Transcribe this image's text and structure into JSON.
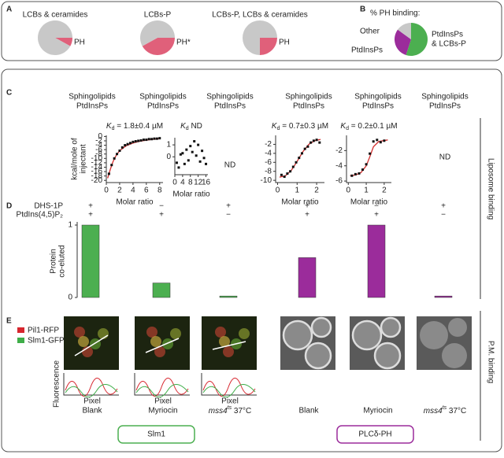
{
  "panel_labels": [
    "A",
    "B",
    "C",
    "D",
    "E"
  ],
  "chart_data": [
    {
      "type": "pie",
      "title": "LCBs & ceramides",
      "labels": [
        "PH",
        null
      ],
      "values": [
        8,
        92
      ],
      "colors": [
        "#e0607a",
        "#c8c8c8"
      ]
    },
    {
      "type": "pie",
      "title": "LCBs-P",
      "labels": [
        "PH*",
        null
      ],
      "values": [
        42,
        58
      ],
      "colors": [
        "#e0607a",
        "#c8c8c8"
      ]
    },
    {
      "type": "pie",
      "title": "LCBs-P, LCBs & ceramides",
      "labels": [
        "PH",
        null
      ],
      "values": [
        25,
        75
      ],
      "colors": [
        "#e0607a",
        "#c8c8c8"
      ]
    },
    {
      "type": "pie",
      "title": "% PH binding:",
      "labels": [
        [
          "PtdInsPs",
          "& LCBs-P"
        ],
        [
          "PtdInsPs"
        ],
        [
          "Other"
        ]
      ],
      "values": [
        55,
        30,
        15
      ],
      "colors": [
        "#4caf50",
        "#9b2c9b",
        "#c8c8c8"
      ]
    },
    {
      "type": "scatter",
      "kd": {
        "symbol": "K",
        "sub": "d",
        "text": " = 1.8±0.4 µM"
      },
      "xlabel": "Molar ratio",
      "ylabel": [
        "kcal/mole of",
        "injectant"
      ],
      "x": [
        0.4,
        0.8,
        1.2,
        1.6,
        2.0,
        2.4,
        2.8,
        3.2,
        3.6,
        4.0,
        4.4,
        4.8,
        5.2,
        5.6,
        6.0,
        6.4,
        6.8,
        7.2,
        7.6,
        8.0
      ],
      "values": [
        -17,
        -13,
        -10,
        -8,
        -6.5,
        -5,
        -4,
        -3.5,
        -3,
        -2.5,
        -2.2,
        -2,
        -1.8,
        -1.5,
        -1.5,
        -1.2,
        -1.2,
        -1,
        -1,
        -0.8
      ],
      "fit": {
        "color": "#d32f2f",
        "x": [
          0.2,
          0.6,
          1,
          1.5,
          2,
          3,
          4,
          5,
          6,
          7,
          8
        ],
        "values": [
          -19,
          -15,
          -11.5,
          -8.5,
          -6.5,
          -4.2,
          -3,
          -2.2,
          -1.7,
          -1.3,
          -1
        ]
      },
      "xlim": [
        0,
        8.5
      ],
      "ylim": [
        -21,
        0.5
      ],
      "xticks": [
        0,
        2,
        4,
        6,
        8
      ],
      "yticks": [
        0,
        -2,
        -4,
        -6,
        -8,
        -10,
        -12,
        -14,
        -16,
        -18,
        -20
      ]
    },
    {
      "type": "scatter",
      "kd": {
        "symbol": "K",
        "sub": "d",
        "text": " ND"
      },
      "xlabel": "Molar ratio",
      "x": [
        1,
        2,
        3,
        4,
        5,
        6,
        7,
        8,
        9,
        10,
        11,
        12,
        13,
        14,
        15,
        16
      ],
      "values": [
        -0.5,
        -0.9,
        0.2,
        0.3,
        -0.6,
        0.6,
        -0.3,
        0.9,
        0.4,
        1.3,
        0.1,
        1.0,
        -0.4,
        0.5,
        -0.1,
        -0.6
      ],
      "xlim": [
        0,
        17
      ],
      "ylim": [
        -1.5,
        1.6
      ],
      "xticks": [
        0,
        4,
        8,
        12,
        16
      ],
      "yticks": [
        1,
        0
      ]
    },
    {
      "type": "scatter",
      "kd": {
        "symbol": "K",
        "sub": "d",
        "text": " = 0.7±0.3 µM"
      },
      "xlabel": "Molar ratio",
      "x": [
        0.2,
        0.35,
        0.5,
        0.65,
        0.8,
        0.95,
        1.1,
        1.25,
        1.4,
        1.55,
        1.7,
        1.85,
        2.0,
        2.15
      ],
      "values": [
        -8.8,
        -9.2,
        -8.5,
        -8,
        -7,
        -6,
        -5,
        -4,
        -3,
        -2.5,
        -1.6,
        -1.2,
        -1,
        -1.6
      ],
      "fit": {
        "color": "#d32f2f",
        "x": [
          0.1,
          0.4,
          0.7,
          1.0,
          1.3,
          1.6,
          1.9,
          2.2
        ],
        "values": [
          -9.3,
          -9,
          -7.8,
          -5.8,
          -3.6,
          -2,
          -1.2,
          -0.9
        ]
      },
      "xlim": [
        -0.1,
        2.4
      ],
      "ylim": [
        -10.5,
        0
      ],
      "xticks": [
        0,
        1,
        2
      ],
      "yticks": [
        -2,
        -4,
        -6,
        -8,
        -10
      ]
    },
    {
      "type": "scatter",
      "kd": {
        "symbol": "K",
        "sub": "d",
        "text": " = 0.2±0.1 µM"
      },
      "xlabel": "Molar ratio",
      "x": [
        0.2,
        0.4,
        0.6,
        0.8,
        1.0,
        1.2,
        1.4,
        1.6,
        1.8,
        2.0
      ],
      "values": [
        -5.3,
        -5.1,
        -5.0,
        -4.5,
        -3.8,
        -2.4,
        -0.8,
        -0.6,
        -0.9,
        -0.7
      ],
      "fit": {
        "color": "#d32f2f",
        "x": [
          0.1,
          0.4,
          0.7,
          1.0,
          1.2,
          1.4,
          1.7,
          2.2
        ],
        "values": [
          -5.3,
          -5.2,
          -4.9,
          -4,
          -2.8,
          -1.5,
          -0.8,
          -0.6
        ]
      },
      "xlim": [
        -0.1,
        2.4
      ],
      "ylim": [
        -6.2,
        0
      ],
      "xticks": [
        0,
        1,
        2
      ],
      "yticks": [
        -2,
        -4,
        -6
      ]
    },
    {
      "type": "bar",
      "ylabel": [
        "Protein",
        "co-eluted"
      ],
      "values": [
        1,
        0.2,
        0.02,
        0.55,
        1,
        0.02
      ],
      "colors": [
        "#4caf50",
        "#4caf50",
        "#4caf50",
        "#9b2c9b",
        "#9b2c9b",
        "#9b2c9b"
      ],
      "ylim": [
        0,
        1
      ],
      "yticks": [
        0,
        1
      ],
      "sign_rows": [
        {
          "label": "DHS-1P",
          "signs": [
            "+",
            "−",
            "+",
            "+",
            "−",
            "+"
          ]
        },
        {
          "label": "PtdIns(4,5)P₂",
          "signs": [
            "+",
            "+",
            "−",
            "+",
            "+",
            "−"
          ]
        }
      ]
    }
  ],
  "c_headers": [
    [
      "Sphingolipids",
      "PtdInsPs"
    ],
    [
      "Sphingolipids",
      "PtdInsPs"
    ],
    [
      "Sphingolipids",
      "PtdInsPs"
    ],
    [
      "Sphingolipids",
      "PtdInsPs"
    ],
    [
      "Sphingolipids",
      "PtdInsPs"
    ],
    [
      "Sphingolipids",
      "PtdInsPs"
    ]
  ],
  "nd_labels": [
    "ND",
    "ND"
  ],
  "panel_e": {
    "legend": [
      {
        "name": "Pil1-RFP",
        "color": "#d7262e"
      },
      {
        "name": "Slm1-GFP",
        "color": "#3fae49"
      }
    ],
    "profile_ylabel": "Fluorescence",
    "profile_xlabel": "Pixel",
    "conditions": [
      {
        "text": "Blank"
      },
      {
        "text": "Myriocin"
      },
      {
        "gene": "mss4",
        "allele": "ts",
        "rest": " 37°C"
      },
      {
        "text": "Blank"
      },
      {
        "text": "Myriocin"
      },
      {
        "gene": "mss4",
        "allele": "ts",
        "rest": " 37°C"
      }
    ],
    "groups": [
      {
        "name": "Slm1",
        "color": "#4caf50"
      },
      {
        "name": "PLCδ-PH",
        "color": "#9b2c9b"
      }
    ]
  },
  "side_labels": [
    "Liposome binding",
    "P.M. binding"
  ]
}
